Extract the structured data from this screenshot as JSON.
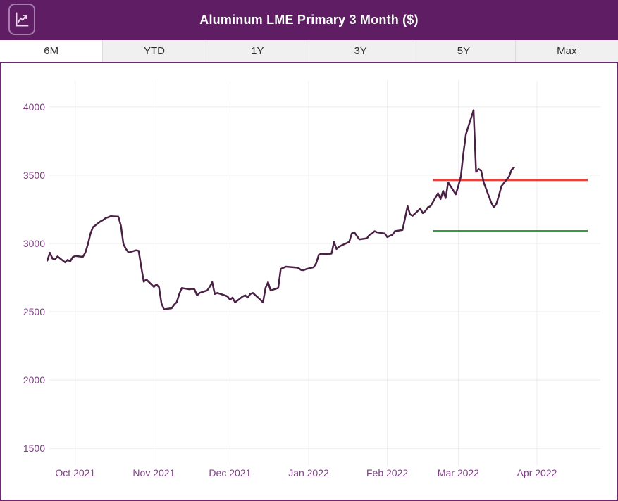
{
  "header": {
    "title": "Aluminum LME Primary 3 Month ($)",
    "icon": "line-chart-icon",
    "bg_color": "#5f1e63"
  },
  "tabs": {
    "items": [
      {
        "label": "6M",
        "active": true
      },
      {
        "label": "YTD",
        "active": false
      },
      {
        "label": "1Y",
        "active": false
      },
      {
        "label": "3Y",
        "active": false
      },
      {
        "label": "5Y",
        "active": false
      },
      {
        "label": "Max",
        "active": false
      }
    ]
  },
  "chart_data": {
    "type": "line",
    "title": "Aluminum LME Primary 3 Month ($)",
    "xlabel": "",
    "ylabel": "",
    "grid": true,
    "legend": "none",
    "x_ticks": [
      "Oct 2021",
      "Nov 2021",
      "Dec 2021",
      "Jan 2022",
      "Feb 2022",
      "Mar 2022",
      "Apr 2022"
    ],
    "x_tick_dates": [
      "2021-10-01",
      "2021-11-01",
      "2021-12-01",
      "2022-01-01",
      "2022-02-01",
      "2022-03-01",
      "2022-04-01"
    ],
    "x_domain": [
      "2021-09-18",
      "2022-04-26"
    ],
    "y_ticks": [
      4000,
      3500,
      3000,
      2500,
      2000,
      1500
    ],
    "ylim": [
      1372,
      4190
    ],
    "colors": {
      "series": "#4a2145",
      "upper_reference": "#ee3e38",
      "lower_reference": "#2f9e41",
      "axis_label": "#7d4383",
      "grid_h": "#ebebeb",
      "grid_v": "#f1edf1"
    },
    "reference_lines": [
      {
        "name": "upper-reference-line",
        "color": "#ee3e38",
        "value": 3465,
        "from": "2022-02-19",
        "to": "2022-04-21"
      },
      {
        "name": "lower-reference-line",
        "color": "#2f9e41",
        "value": 3090,
        "from": "2022-02-19",
        "to": "2022-04-21"
      }
    ],
    "series": [
      {
        "name": "aluminum-lme-3m-price",
        "color": "#4a2145",
        "width": 2.5,
        "points": [
          [
            "2021-09-20",
            2875
          ],
          [
            "2021-09-21",
            2932
          ],
          [
            "2021-09-22",
            2890
          ],
          [
            "2021-09-23",
            2882
          ],
          [
            "2021-09-24",
            2905
          ],
          [
            "2021-09-27",
            2862
          ],
          [
            "2021-09-28",
            2880
          ],
          [
            "2021-09-29",
            2868
          ],
          [
            "2021-09-30",
            2900
          ],
          [
            "2021-10-01",
            2908
          ],
          [
            "2021-10-04",
            2902
          ],
          [
            "2021-10-05",
            2934
          ],
          [
            "2021-10-06",
            2995
          ],
          [
            "2021-10-07",
            3072
          ],
          [
            "2021-10-08",
            3120
          ],
          [
            "2021-10-11",
            3162
          ],
          [
            "2021-10-12",
            3172
          ],
          [
            "2021-10-13",
            3186
          ],
          [
            "2021-10-14",
            3192
          ],
          [
            "2021-10-15",
            3200
          ],
          [
            "2021-10-18",
            3196
          ],
          [
            "2021-10-19",
            3130
          ],
          [
            "2021-10-20",
            2995
          ],
          [
            "2021-10-21",
            2960
          ],
          [
            "2021-10-22",
            2934
          ],
          [
            "2021-10-25",
            2950
          ],
          [
            "2021-10-26",
            2946
          ],
          [
            "2021-10-27",
            2830
          ],
          [
            "2021-10-28",
            2720
          ],
          [
            "2021-10-29",
            2736
          ],
          [
            "2021-11-01",
            2682
          ],
          [
            "2021-11-02",
            2700
          ],
          [
            "2021-11-03",
            2680
          ],
          [
            "2021-11-04",
            2560
          ],
          [
            "2021-11-05",
            2518
          ],
          [
            "2021-11-08",
            2526
          ],
          [
            "2021-11-09",
            2552
          ],
          [
            "2021-11-10",
            2570
          ],
          [
            "2021-11-11",
            2630
          ],
          [
            "2021-11-12",
            2674
          ],
          [
            "2021-11-15",
            2664
          ],
          [
            "2021-11-16",
            2668
          ],
          [
            "2021-11-17",
            2664
          ],
          [
            "2021-11-18",
            2620
          ],
          [
            "2021-11-19",
            2638
          ],
          [
            "2021-11-22",
            2656
          ],
          [
            "2021-11-23",
            2682
          ],
          [
            "2021-11-24",
            2716
          ],
          [
            "2021-11-25",
            2630
          ],
          [
            "2021-11-26",
            2638
          ],
          [
            "2021-11-29",
            2620
          ],
          [
            "2021-11-30",
            2612
          ],
          [
            "2021-12-01",
            2588
          ],
          [
            "2021-12-02",
            2604
          ],
          [
            "2021-12-03",
            2568
          ],
          [
            "2021-12-06",
            2612
          ],
          [
            "2021-12-07",
            2620
          ],
          [
            "2021-12-08",
            2604
          ],
          [
            "2021-12-09",
            2630
          ],
          [
            "2021-12-10",
            2638
          ],
          [
            "2021-12-13",
            2588
          ],
          [
            "2021-12-14",
            2568
          ],
          [
            "2021-12-15",
            2674
          ],
          [
            "2021-12-16",
            2716
          ],
          [
            "2021-12-17",
            2656
          ],
          [
            "2021-12-20",
            2674
          ],
          [
            "2021-12-21",
            2813
          ],
          [
            "2021-12-22",
            2821
          ],
          [
            "2021-12-23",
            2830
          ],
          [
            "2021-12-27",
            2824
          ],
          [
            "2021-12-28",
            2820
          ],
          [
            "2021-12-29",
            2806
          ],
          [
            "2021-12-30",
            2804
          ],
          [
            "2021-12-31",
            2812
          ],
          [
            "2022-01-03",
            2826
          ],
          [
            "2022-01-04",
            2856
          ],
          [
            "2022-01-05",
            2916
          ],
          [
            "2022-01-06",
            2925
          ],
          [
            "2022-01-07",
            2922
          ],
          [
            "2022-01-10",
            2925
          ],
          [
            "2022-01-11",
            3010
          ],
          [
            "2022-01-12",
            2960
          ],
          [
            "2022-01-13",
            2977
          ],
          [
            "2022-01-14",
            2986
          ],
          [
            "2022-01-17",
            3012
          ],
          [
            "2022-01-18",
            3073
          ],
          [
            "2022-01-19",
            3082
          ],
          [
            "2022-01-20",
            3056
          ],
          [
            "2022-01-21",
            3030
          ],
          [
            "2022-01-24",
            3038
          ],
          [
            "2022-01-25",
            3064
          ],
          [
            "2022-01-26",
            3073
          ],
          [
            "2022-01-27",
            3090
          ],
          [
            "2022-01-28",
            3082
          ],
          [
            "2022-01-31",
            3073
          ],
          [
            "2022-02-01",
            3047
          ],
          [
            "2022-02-02",
            3056
          ],
          [
            "2022-02-03",
            3064
          ],
          [
            "2022-02-04",
            3090
          ],
          [
            "2022-02-07",
            3099
          ],
          [
            "2022-02-08",
            3185
          ],
          [
            "2022-02-09",
            3273
          ],
          [
            "2022-02-10",
            3212
          ],
          [
            "2022-02-11",
            3203
          ],
          [
            "2022-02-14",
            3255
          ],
          [
            "2022-02-15",
            3222
          ],
          [
            "2022-02-16",
            3238
          ],
          [
            "2022-02-17",
            3264
          ],
          [
            "2022-02-18",
            3272
          ],
          [
            "2022-02-21",
            3368
          ],
          [
            "2022-02-22",
            3325
          ],
          [
            "2022-02-23",
            3385
          ],
          [
            "2022-02-24",
            3333
          ],
          [
            "2022-02-25",
            3447
          ],
          [
            "2022-02-28",
            3360
          ],
          [
            "2022-03-01",
            3420
          ],
          [
            "2022-03-02",
            3490
          ],
          [
            "2022-03-03",
            3660
          ],
          [
            "2022-03-04",
            3800
          ],
          [
            "2022-03-07",
            3975
          ],
          [
            "2022-03-08",
            3524
          ],
          [
            "2022-03-09",
            3545
          ],
          [
            "2022-03-10",
            3533
          ],
          [
            "2022-03-11",
            3447
          ],
          [
            "2022-03-14",
            3298
          ],
          [
            "2022-03-15",
            3264
          ],
          [
            "2022-03-16",
            3290
          ],
          [
            "2022-03-17",
            3351
          ],
          [
            "2022-03-18",
            3420
          ],
          [
            "2022-03-21",
            3490
          ],
          [
            "2022-03-22",
            3540
          ],
          [
            "2022-03-23",
            3557
          ]
        ]
      }
    ]
  }
}
